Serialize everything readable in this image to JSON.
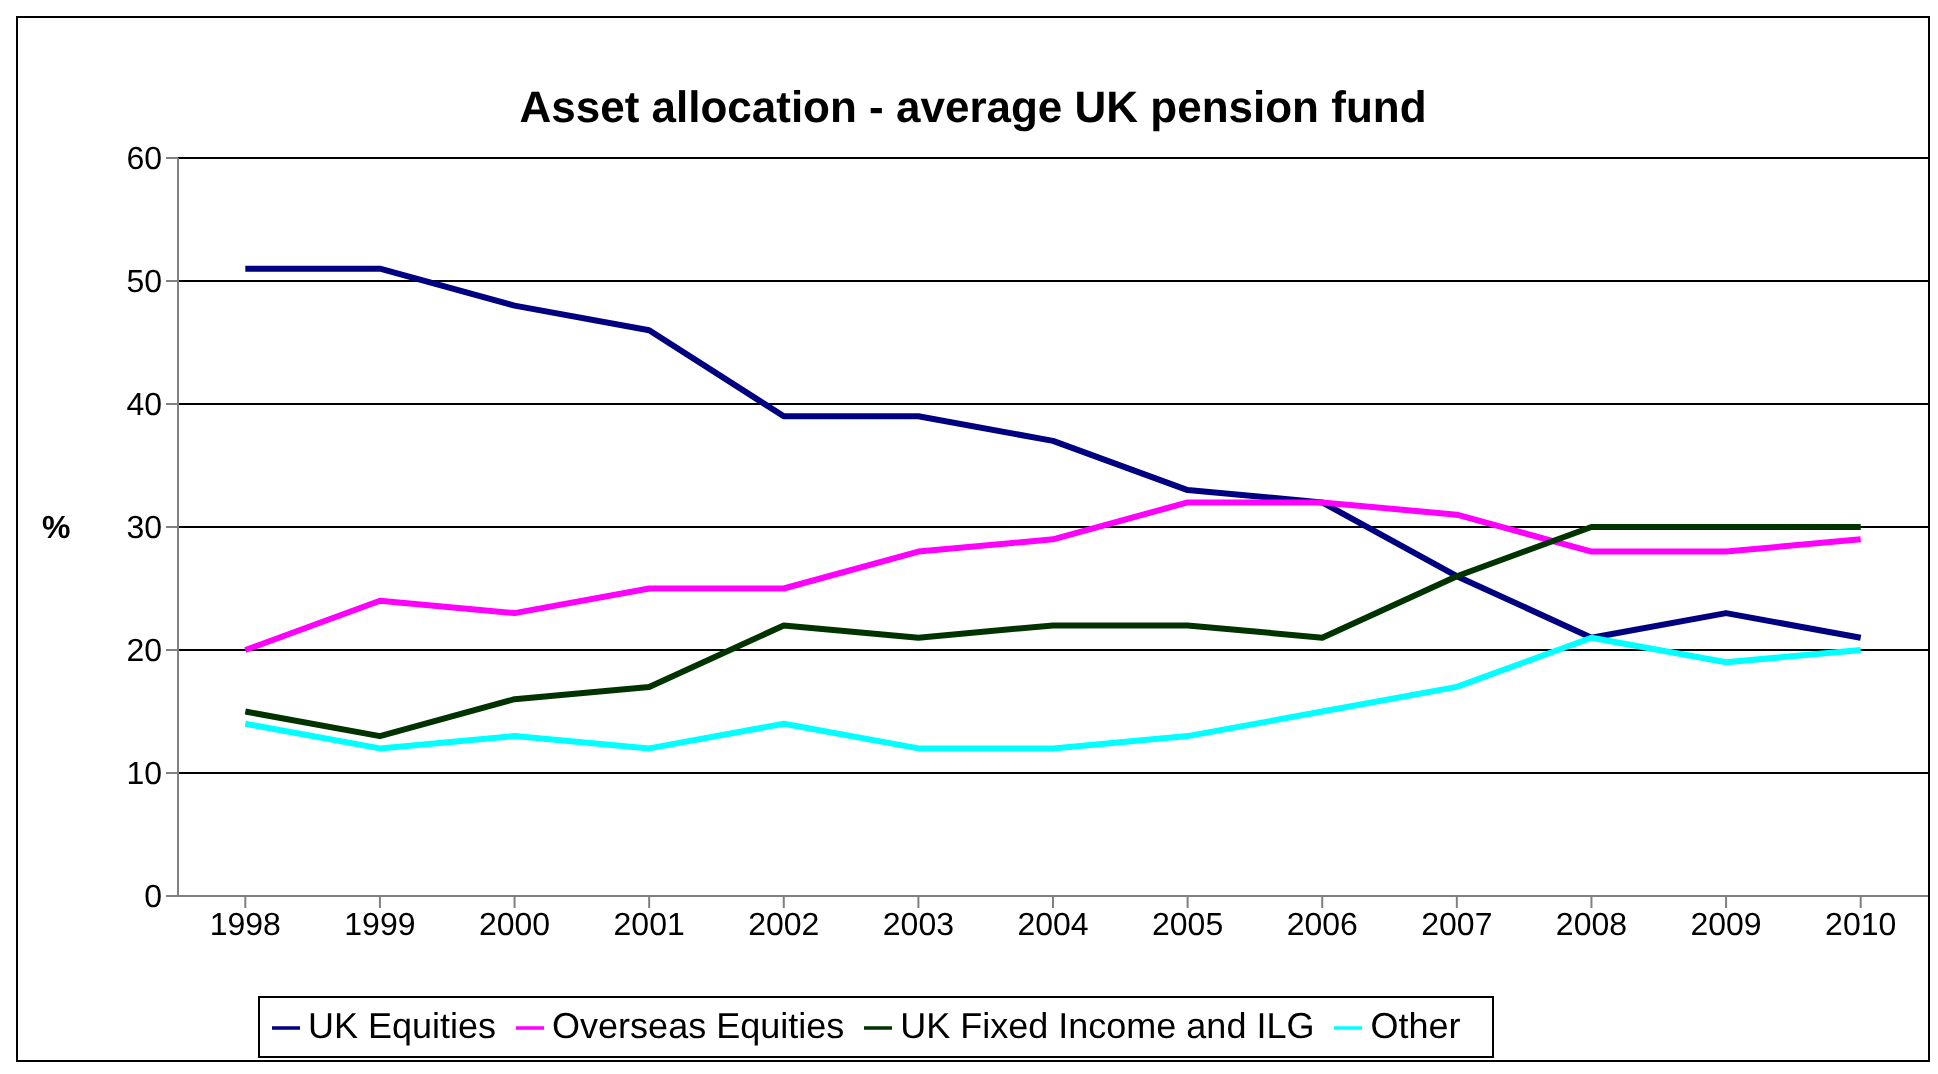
{
  "chart_data": {
    "type": "line",
    "title": "Asset allocation - average UK pension fund",
    "ylabel": "%",
    "categories": [
      "1998",
      "1999",
      "2000",
      "2001",
      "2002",
      "2003",
      "2004",
      "2005",
      "2006",
      "2007",
      "2008",
      "2009",
      "2010"
    ],
    "series": [
      {
        "name": "UK Equities",
        "color": "#000080",
        "values": [
          51,
          51,
          48,
          46,
          39,
          39,
          37,
          33,
          32,
          26,
          21,
          23,
          21
        ]
      },
      {
        "name": "Overseas Equities",
        "color": "#ff00ff",
        "values": [
          20,
          24,
          23,
          25,
          25,
          28,
          29,
          32,
          32,
          31,
          28,
          28,
          29
        ]
      },
      {
        "name": "UK Fixed Income and ILG",
        "color": "#003300",
        "values": [
          15,
          13,
          16,
          17,
          22,
          21,
          22,
          22,
          21,
          26,
          30,
          30,
          30
        ]
      },
      {
        "name": "Other",
        "color": "#00ffff",
        "values": [
          14,
          12,
          13,
          12,
          14,
          12,
          12,
          13,
          15,
          17,
          21,
          19,
          20
        ]
      }
    ],
    "ylim": [
      0,
      60
    ],
    "yticks": [
      0,
      10,
      20,
      30,
      40,
      50,
      60
    ],
    "grid": "y",
    "legend": "bottom",
    "marker": "none",
    "line_style": "solid"
  }
}
